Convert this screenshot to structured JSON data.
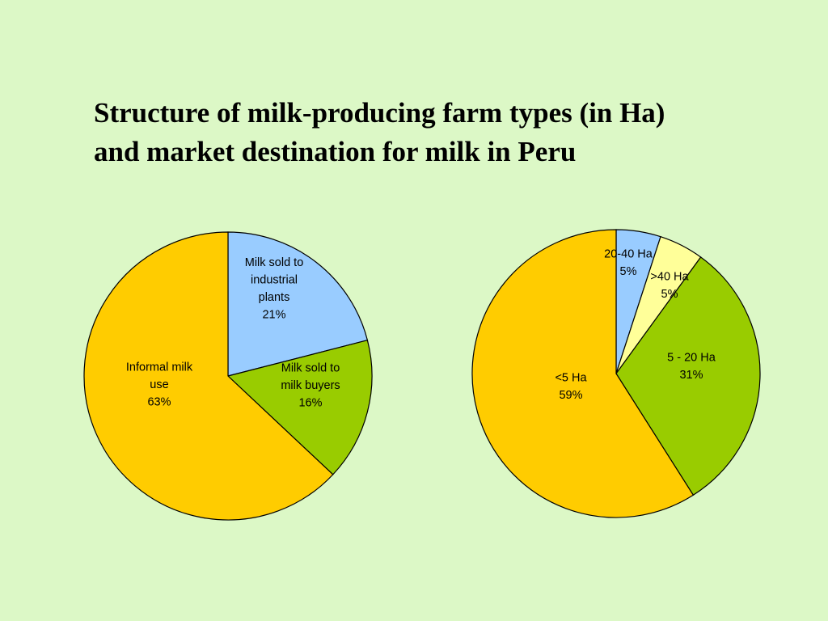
{
  "slide": {
    "title_line1": "Structure of milk-producing farm types (in Ha)",
    "title_line2": "and market destination for milk in Peru",
    "background": "#dcf8c6"
  },
  "chart_data": [
    {
      "type": "pie",
      "title": "",
      "slices": [
        {
          "label": [
            "Milk sold to",
            "industrial",
            "plants"
          ],
          "percent_label": "21%",
          "value": 21,
          "color": "#99ccff"
        },
        {
          "label": [
            "Milk sold to",
            "milk buyers"
          ],
          "percent_label": "16%",
          "value": 16,
          "color": "#99cc00"
        },
        {
          "label": [
            "Informal milk",
            "use"
          ],
          "percent_label": "63%",
          "value": 63,
          "color": "#ffcc00"
        }
      ]
    },
    {
      "type": "pie",
      "title": "",
      "slices": [
        {
          "label": [
            "20-40 Ha"
          ],
          "percent_label": "5%",
          "value": 5,
          "color": "#99ccff"
        },
        {
          "label": [
            ">40 Ha"
          ],
          "percent_label": "5%",
          "value": 5,
          "color": "#ffff99"
        },
        {
          "label": [
            "5 - 20 Ha"
          ],
          "percent_label": "31%",
          "value": 31,
          "color": "#99cc00"
        },
        {
          "label": [
            "<5 Ha"
          ],
          "percent_label": "59%",
          "value": 59,
          "color": "#ffcc00"
        }
      ]
    }
  ]
}
